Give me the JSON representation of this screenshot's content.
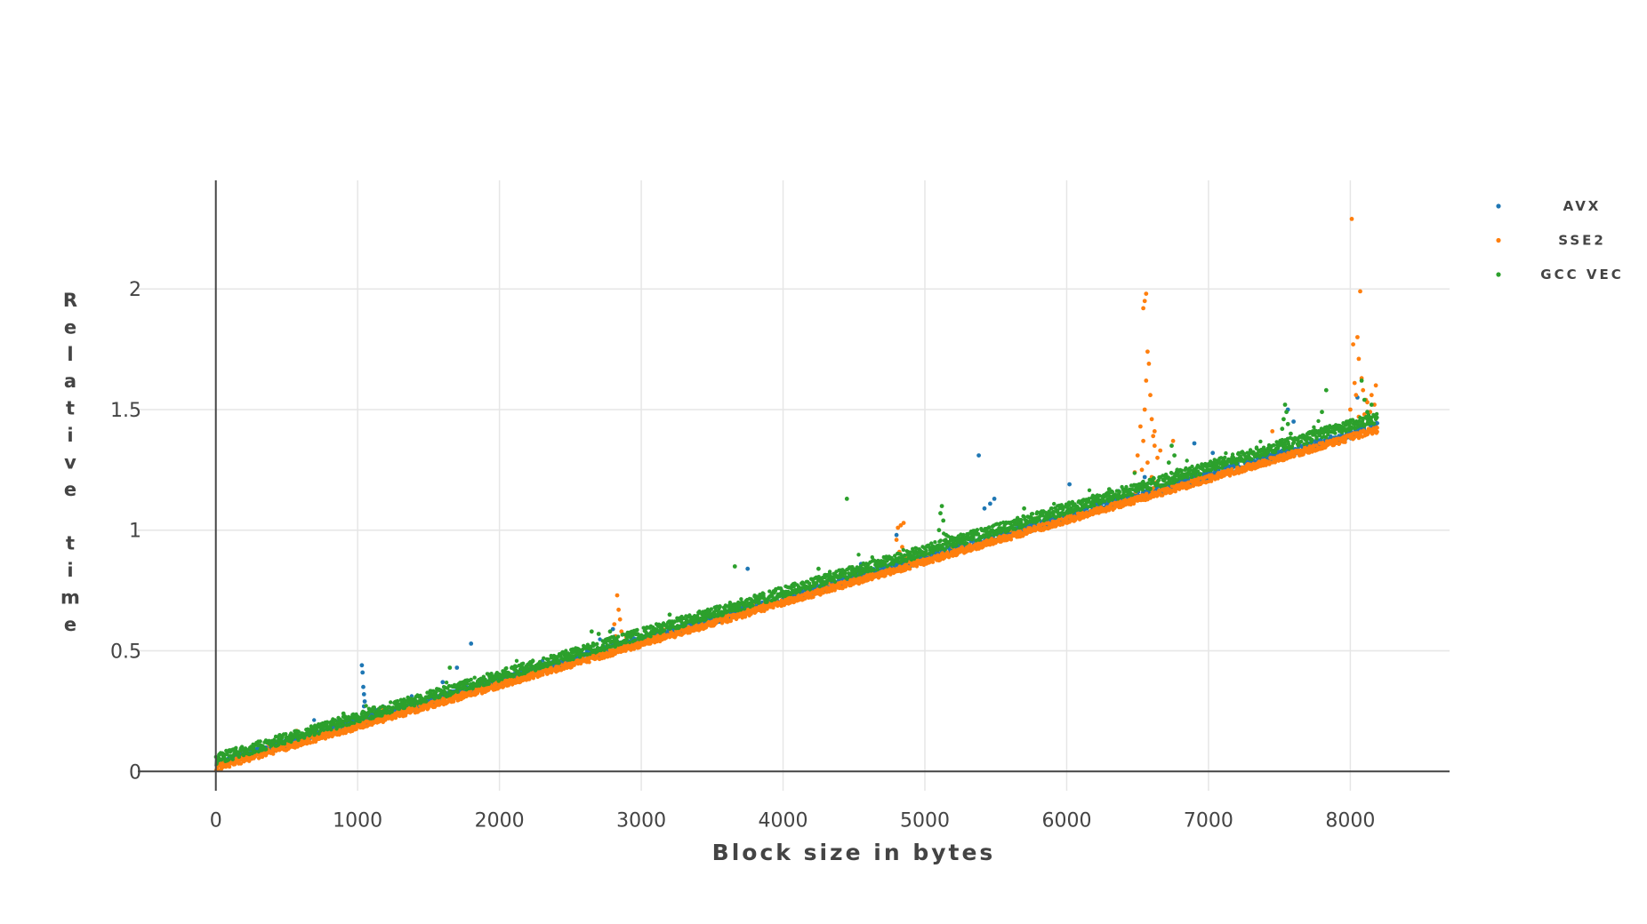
{
  "chart_data": {
    "type": "scatter",
    "title": "",
    "xlabel": "Block size in bytes",
    "ylabel": "Relative time",
    "xlim": [
      -550,
      8700
    ],
    "ylim": [
      -0.08,
      2.45
    ],
    "xticks": [
      0,
      1000,
      2000,
      3000,
      4000,
      5000,
      6000,
      7000,
      8000
    ],
    "xtick_labels": [
      "0",
      "1000",
      "2000",
      "3000",
      "4000",
      "5000",
      "6000",
      "7000",
      "8000"
    ],
    "yticks": [
      0,
      0.5,
      1,
      1.5,
      2
    ],
    "ytick_labels": [
      "0",
      "0.5",
      "1",
      "1.5",
      "2"
    ],
    "grid": true,
    "legend_position": "top-right",
    "x_range": [
      0,
      8192
    ],
    "series": [
      {
        "name": "AVX",
        "color": "#1f77b4",
        "trend": {
          "intercept": 0.025,
          "slope_per_1000": 0.1705
        },
        "outliers": [
          [
            1030,
            0.44
          ],
          [
            1035,
            0.41
          ],
          [
            1040,
            0.35
          ],
          [
            1045,
            0.32
          ],
          [
            1050,
            0.29
          ],
          [
            1045,
            0.27
          ],
          [
            1800,
            0.53
          ],
          [
            1700,
            0.43
          ],
          [
            1600,
            0.37
          ],
          [
            3750,
            0.84
          ],
          [
            4550,
            0.86
          ],
          [
            5380,
            1.31
          ],
          [
            5460,
            1.11
          ],
          [
            5490,
            1.13
          ],
          [
            5420,
            1.09
          ],
          [
            6020,
            1.19
          ],
          [
            6900,
            1.36
          ],
          [
            7030,
            1.32
          ],
          [
            7560,
            1.5
          ],
          [
            7600,
            1.45
          ],
          [
            8050,
            1.55
          ],
          [
            1200,
            0.25
          ],
          [
            2800,
            0.59
          ],
          [
            4800,
            0.98
          ],
          [
            6550,
            1.22
          ]
        ]
      },
      {
        "name": "SSE2",
        "color": "#ff7f0e",
        "trend": {
          "intercept": 0.012,
          "slope_per_1000": 0.171
        },
        "outliers": [
          [
            2830,
            0.73
          ],
          [
            2840,
            0.67
          ],
          [
            2850,
            0.63
          ],
          [
            2810,
            0.61
          ],
          [
            2860,
            0.58
          ],
          [
            2820,
            0.56
          ],
          [
            4830,
            1.02
          ],
          [
            4850,
            1.03
          ],
          [
            4810,
            1.01
          ],
          [
            4800,
            0.96
          ],
          [
            4840,
            0.93
          ],
          [
            4820,
            0.91
          ],
          [
            4860,
            0.89
          ],
          [
            6560,
            1.98
          ],
          [
            6550,
            1.95
          ],
          [
            6540,
            1.92
          ],
          [
            6570,
            1.74
          ],
          [
            6580,
            1.69
          ],
          [
            6560,
            1.62
          ],
          [
            6590,
            1.56
          ],
          [
            6550,
            1.5
          ],
          [
            6600,
            1.46
          ],
          [
            6520,
            1.43
          ],
          [
            6610,
            1.39
          ],
          [
            6540,
            1.37
          ],
          [
            6620,
            1.35
          ],
          [
            6500,
            1.31
          ],
          [
            6570,
            1.28
          ],
          [
            6530,
            1.25
          ],
          [
            6600,
            1.22
          ],
          [
            6480,
            1.24
          ],
          [
            6640,
            1.3
          ],
          [
            6620,
            1.41
          ],
          [
            6660,
            1.33
          ],
          [
            8010,
            2.29
          ],
          [
            8070,
            1.99
          ],
          [
            8050,
            1.8
          ],
          [
            8020,
            1.77
          ],
          [
            8060,
            1.71
          ],
          [
            8080,
            1.63
          ],
          [
            8030,
            1.61
          ],
          [
            8090,
            1.58
          ],
          [
            8040,
            1.56
          ],
          [
            8110,
            1.54
          ],
          [
            8180,
            1.6
          ],
          [
            8150,
            1.56
          ],
          [
            8120,
            1.53
          ],
          [
            8170,
            1.52
          ],
          [
            8000,
            1.5
          ],
          [
            8100,
            1.48
          ],
          [
            8140,
            1.49
          ],
          [
            8060,
            1.47
          ],
          [
            6750,
            1.37
          ],
          [
            7450,
            1.41
          ]
        ]
      },
      {
        "name": "GCC VEC",
        "color": "#2ca02c",
        "trend": {
          "intercept": 0.04,
          "slope_per_1000": 0.173
        },
        "outliers": [
          [
            4450,
            1.13
          ],
          [
            3660,
            0.85
          ],
          [
            5120,
            1.1
          ],
          [
            5110,
            1.07
          ],
          [
            5130,
            1.04
          ],
          [
            5100,
            1.0
          ],
          [
            5150,
            0.98
          ],
          [
            7540,
            1.52
          ],
          [
            7550,
            1.49
          ],
          [
            7530,
            1.46
          ],
          [
            7560,
            1.44
          ],
          [
            7520,
            1.42
          ],
          [
            7580,
            1.4
          ],
          [
            7830,
            1.58
          ],
          [
            8080,
            1.62
          ],
          [
            8100,
            1.54
          ],
          [
            8150,
            1.52
          ],
          [
            8120,
            1.49
          ],
          [
            6740,
            1.35
          ],
          [
            6760,
            1.31
          ],
          [
            6720,
            1.28
          ],
          [
            6780,
            1.25
          ],
          [
            6700,
            1.23
          ],
          [
            2650,
            0.58
          ],
          [
            2700,
            0.57
          ],
          [
            2780,
            0.58
          ],
          [
            1650,
            0.43
          ],
          [
            1100,
            0.25
          ],
          [
            1150,
            0.24
          ],
          [
            3200,
            0.65
          ],
          [
            4250,
            0.84
          ],
          [
            5700,
            1.09
          ],
          [
            6300,
            1.17
          ],
          [
            7800,
            1.49
          ],
          [
            60,
            0.07
          ],
          [
            120,
            0.09
          ],
          [
            450,
            0.15
          ],
          [
            900,
            0.24
          ]
        ]
      }
    ]
  }
}
